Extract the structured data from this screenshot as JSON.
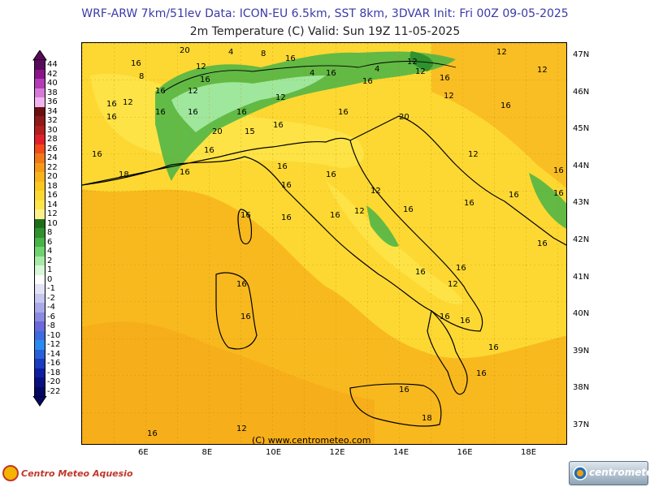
{
  "header": {
    "title_line1": "WRF-ARW 7km/51lev   Data: ICON-EU 6.5km, SST 8km, 3DVAR   Init: Fri 00Z 09-05-2025",
    "title_line2": "2m Temperature (C)  Valid: Sun 19Z 11-05-2025"
  },
  "colorbar": {
    "labels": [
      "44",
      "42",
      "40",
      "38",
      "36",
      "34",
      "32",
      "30",
      "28",
      "26",
      "24",
      "22",
      "20",
      "18",
      "16",
      "14",
      "12",
      "10",
      "8",
      "6",
      "4",
      "2",
      "1",
      "0",
      "-1",
      "-2",
      "-4",
      "-6",
      "-8",
      "-10",
      "-12",
      "-14",
      "-16",
      "-18",
      "-20",
      "-22"
    ],
    "colors": [
      "#5a0a5a",
      "#8a158a",
      "#b43cb4",
      "#d77ad7",
      "#f0b4f0",
      "#6b1010",
      "#8f1a1a",
      "#b31e1e",
      "#e0202a",
      "#f24a1a",
      "#f07818",
      "#f59a18",
      "#f7b41c",
      "#fbc820",
      "#fdd832",
      "#fde64a",
      "#fef08a",
      "#1e6e1e",
      "#2f922f",
      "#46b446",
      "#6fd36f",
      "#a6eca6",
      "#d8f8d8",
      "#ffffff",
      "#e3e3f7",
      "#c7c7f0",
      "#a9a9ea",
      "#8a8ae3",
      "#6a6adc",
      "#3d6be0",
      "#2a8af0",
      "#2860d8",
      "#1a3cc0",
      "#0e1ea0",
      "#081080",
      "#050860"
    ]
  },
  "map": {
    "lat_labels": [
      "47N",
      "46N",
      "45N",
      "44N",
      "43N",
      "42N",
      "41N",
      "40N",
      "39N",
      "38N",
      "37N"
    ],
    "lon_labels": [
      "6E",
      "8E",
      "10E",
      "12E",
      "14E",
      "16E",
      "18E"
    ],
    "contour_labels": [
      "20",
      "16",
      "4",
      "12",
      "8",
      "16",
      "16",
      "12",
      "4",
      "8",
      "16",
      "16",
      "12",
      "12",
      "12",
      "16",
      "16",
      "12",
      "12",
      "4",
      "12",
      "16",
      "16",
      "16",
      "16",
      "20",
      "12",
      "16",
      "16",
      "16",
      "16",
      "20",
      "16",
      "15",
      "16",
      "16",
      "16",
      "16",
      "12",
      "16",
      "16",
      "16",
      "12",
      "12",
      "16",
      "16",
      "16",
      "16",
      "16",
      "12",
      "16",
      "16",
      "16",
      "16",
      "16",
      "18",
      "16",
      "12",
      "16",
      "16",
      "16",
      "16",
      "18",
      "16",
      "16"
    ],
    "copyright": "(C)  www.centrometeo.com"
  },
  "branding": {
    "left_logo": "Centro Meteo Aquesio",
    "right_logo": "centrometeo"
  }
}
